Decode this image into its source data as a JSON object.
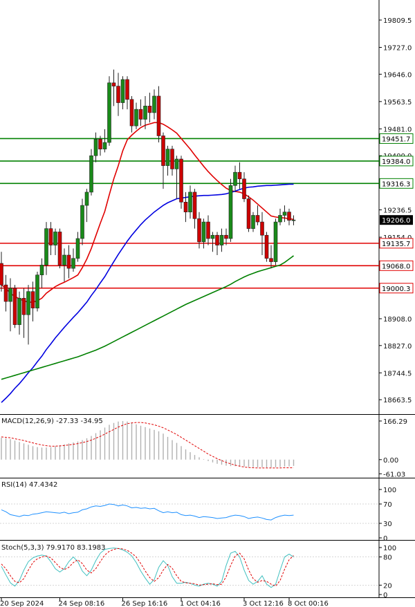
{
  "chart_data": [
    {
      "type": "candlestick",
      "panel": "price",
      "y_ticks": [
        19809.5,
        19727.0,
        19646.0,
        19563.5,
        19481.0,
        19400.0,
        19236.5,
        19154.0,
        18908.0,
        18827.0,
        18744.5,
        18663.5
      ],
      "ylim": [
        18620,
        19870
      ],
      "current_price": 19206.0,
      "x_tick_labels": [
        "20 Sep 2024",
        "24 Sep 08:16",
        "26 Sep 16:16",
        "1 Oct 04:16",
        "3 Oct 12:16",
        "8 Oct 00:16"
      ],
      "horizontal_levels": [
        {
          "value": 19451.7,
          "label": "19451.7",
          "color": "#008000"
        },
        {
          "value": 19384.0,
          "label": "19384.0",
          "color": "#008000"
        },
        {
          "value": 19316.3,
          "label": "19316.3",
          "color": "#008000"
        },
        {
          "value": 19135.7,
          "label": "19135.7",
          "color": "#e00000"
        },
        {
          "value": 19068.0,
          "label": "19068.0",
          "color": "#e00000"
        },
        {
          "value": 19000.3,
          "label": "19000.3",
          "color": "#e00000"
        }
      ],
      "candles": [
        {
          "o": 19075,
          "h": 19110,
          "l": 18990,
          "c": 19010
        },
        {
          "o": 19010,
          "h": 19040,
          "l": 18930,
          "c": 18960
        },
        {
          "o": 18960,
          "h": 19030,
          "l": 18870,
          "c": 19000
        },
        {
          "o": 19000,
          "h": 19010,
          "l": 18880,
          "c": 18890
        },
        {
          "o": 18890,
          "h": 18990,
          "l": 18860,
          "c": 18970
        },
        {
          "o": 18970,
          "h": 19000,
          "l": 18850,
          "c": 18920
        },
        {
          "o": 18920,
          "h": 19010,
          "l": 18830,
          "c": 18990
        },
        {
          "o": 18990,
          "h": 19020,
          "l": 18900,
          "c": 18940
        },
        {
          "o": 18940,
          "h": 19050,
          "l": 18930,
          "c": 19040
        },
        {
          "o": 19040,
          "h": 19090,
          "l": 19000,
          "c": 19070
        },
        {
          "o": 19070,
          "h": 19200,
          "l": 19040,
          "c": 19180
        },
        {
          "o": 19180,
          "h": 19200,
          "l": 19100,
          "c": 19130
        },
        {
          "o": 19130,
          "h": 19180,
          "l": 19100,
          "c": 19170
        },
        {
          "o": 19170,
          "h": 19180,
          "l": 19060,
          "c": 19070
        },
        {
          "o": 19070,
          "h": 19120,
          "l": 19020,
          "c": 19100
        },
        {
          "o": 19100,
          "h": 19130,
          "l": 19030,
          "c": 19060
        },
        {
          "o": 19060,
          "h": 19120,
          "l": 19050,
          "c": 19090
        },
        {
          "o": 19090,
          "h": 19170,
          "l": 19080,
          "c": 19150
        },
        {
          "o": 19150,
          "h": 19270,
          "l": 19130,
          "c": 19250
        },
        {
          "o": 19250,
          "h": 19300,
          "l": 19200,
          "c": 19290
        },
        {
          "o": 19290,
          "h": 19420,
          "l": 19280,
          "c": 19400
        },
        {
          "o": 19400,
          "h": 19470,
          "l": 19380,
          "c": 19450
        },
        {
          "o": 19450,
          "h": 19460,
          "l": 19400,
          "c": 19420
        },
        {
          "o": 19420,
          "h": 19480,
          "l": 19410,
          "c": 19440
        },
        {
          "o": 19440,
          "h": 19640,
          "l": 19430,
          "c": 19620
        },
        {
          "o": 19620,
          "h": 19660,
          "l": 19550,
          "c": 19610
        },
        {
          "o": 19610,
          "h": 19650,
          "l": 19520,
          "c": 19560
        },
        {
          "o": 19560,
          "h": 19640,
          "l": 19540,
          "c": 19630
        },
        {
          "o": 19630,
          "h": 19640,
          "l": 19540,
          "c": 19570
        },
        {
          "o": 19570,
          "h": 19580,
          "l": 19470,
          "c": 19490
        },
        {
          "o": 19490,
          "h": 19560,
          "l": 19480,
          "c": 19540
        },
        {
          "o": 19540,
          "h": 19570,
          "l": 19490,
          "c": 19510
        },
        {
          "o": 19510,
          "h": 19580,
          "l": 19480,
          "c": 19550
        },
        {
          "o": 19550,
          "h": 19590,
          "l": 19500,
          "c": 19530
        },
        {
          "o": 19530,
          "h": 19600,
          "l": 19510,
          "c": 19580
        },
        {
          "o": 19580,
          "h": 19610,
          "l": 19440,
          "c": 19460
        },
        {
          "o": 19460,
          "h": 19470,
          "l": 19300,
          "c": 19370
        },
        {
          "o": 19370,
          "h": 19430,
          "l": 19340,
          "c": 19420
        },
        {
          "o": 19420,
          "h": 19430,
          "l": 19340,
          "c": 19360
        },
        {
          "o": 19360,
          "h": 19400,
          "l": 19270,
          "c": 19390
        },
        {
          "o": 19390,
          "h": 19400,
          "l": 19240,
          "c": 19260
        },
        {
          "o": 19260,
          "h": 19290,
          "l": 19200,
          "c": 19230
        },
        {
          "o": 19230,
          "h": 19310,
          "l": 19210,
          "c": 19290
        },
        {
          "o": 19290,
          "h": 19300,
          "l": 19180,
          "c": 19210
        },
        {
          "o": 19210,
          "h": 19230,
          "l": 19120,
          "c": 19140
        },
        {
          "o": 19140,
          "h": 19210,
          "l": 19120,
          "c": 19200
        },
        {
          "o": 19200,
          "h": 19220,
          "l": 19130,
          "c": 19150
        },
        {
          "o": 19150,
          "h": 19170,
          "l": 19110,
          "c": 19160
        },
        {
          "o": 19160,
          "h": 19170,
          "l": 19100,
          "c": 19130
        },
        {
          "o": 19130,
          "h": 19180,
          "l": 19110,
          "c": 19160
        },
        {
          "o": 19160,
          "h": 19180,
          "l": 19130,
          "c": 19150
        },
        {
          "o": 19150,
          "h": 19330,
          "l": 19140,
          "c": 19310
        },
        {
          "o": 19310,
          "h": 19370,
          "l": 19290,
          "c": 19350
        },
        {
          "o": 19350,
          "h": 19380,
          "l": 19300,
          "c": 19330
        },
        {
          "o": 19330,
          "h": 19350,
          "l": 19260,
          "c": 19270
        },
        {
          "o": 19270,
          "h": 19280,
          "l": 19170,
          "c": 19180
        },
        {
          "o": 19180,
          "h": 19230,
          "l": 19170,
          "c": 19220
        },
        {
          "o": 19220,
          "h": 19250,
          "l": 19190,
          "c": 19200
        },
        {
          "o": 19200,
          "h": 19230,
          "l": 19100,
          "c": 19160
        },
        {
          "o": 19160,
          "h": 19170,
          "l": 19080,
          "c": 19090
        },
        {
          "o": 19090,
          "h": 19130,
          "l": 19060,
          "c": 19080
        },
        {
          "o": 19080,
          "h": 19210,
          "l": 19070,
          "c": 19200
        },
        {
          "o": 19200,
          "h": 19240,
          "l": 19190,
          "c": 19220
        },
        {
          "o": 19220,
          "h": 19250,
          "l": 19200,
          "c": 19230
        },
        {
          "o": 19230,
          "h": 19240,
          "l": 19190,
          "c": 19205
        },
        {
          "o": 19205,
          "h": 19220,
          "l": 19190,
          "c": 19206
        }
      ],
      "moving_averages": [
        {
          "color": "#e00000",
          "values": [
            19010,
            19000,
            18985,
            18975,
            18968,
            18962,
            18958,
            18958,
            18962,
            18970,
            18985,
            18995,
            19005,
            19012,
            19018,
            19025,
            19032,
            19040,
            19062,
            19088,
            19120,
            19158,
            19196,
            19232,
            19282,
            19330,
            19370,
            19415,
            19448,
            19462,
            19474,
            19485,
            19492,
            19496,
            19500,
            19500,
            19495,
            19487,
            19478,
            19468,
            19452,
            19436,
            19420,
            19402,
            19385,
            19368,
            19352,
            19338,
            19325,
            19313,
            19302,
            19295,
            19292,
            19290,
            19285,
            19276,
            19266,
            19254,
            19242,
            19230,
            19218,
            19215,
            19213,
            19212,
            19210,
            19208
          ]
        },
        {
          "color": "#0000e0",
          "values": [
            18655,
            18668,
            18682,
            18698,
            18712,
            18728,
            18745,
            18760,
            18778,
            18795,
            18815,
            18832,
            18850,
            18866,
            18882,
            18897,
            18912,
            18926,
            18942,
            18958,
            18978,
            18996,
            19016,
            19035,
            19058,
            19080,
            19102,
            19122,
            19142,
            19160,
            19176,
            19192,
            19206,
            19218,
            19230,
            19240,
            19250,
            19258,
            19264,
            19270,
            19272,
            19274,
            19276,
            19278,
            19279,
            19280,
            19280,
            19281,
            19282,
            19283,
            19285,
            19289,
            19293,
            19298,
            19302,
            19305,
            19306,
            19308,
            19309,
            19310,
            19310,
            19311,
            19312,
            19313,
            19314,
            19314
          ]
        },
        {
          "color": "#008000",
          "values": [
            18725,
            18729,
            18733,
            18737,
            18741,
            18745,
            18749,
            18753,
            18757,
            18761,
            18765,
            18769,
            18773,
            18777,
            18781,
            18785,
            18789,
            18793,
            18798,
            18803,
            18808,
            18813,
            18819,
            18825,
            18832,
            18839,
            18846,
            18853,
            18860,
            18867,
            18874,
            18881,
            18888,
            18895,
            18902,
            18909,
            18916,
            18923,
            18930,
            18937,
            18944,
            18951,
            18957,
            18963,
            18969,
            18975,
            18981,
            18987,
            18993,
            18999,
            19005,
            19012,
            19020,
            19027,
            19034,
            19040,
            19045,
            19050,
            19054,
            19058,
            19062,
            19066,
            19070,
            19078,
            19088,
            19098
          ]
        }
      ]
    },
    {
      "type": "bar",
      "panel": "macd",
      "title": "MACD(12,26,9) -27.33 -34.95",
      "y_ticks": [
        166.29,
        0.0,
        -61.03
      ],
      "ylim": [
        -75,
        190
      ],
      "histogram": [
        95,
        92,
        88,
        82,
        76,
        70,
        64,
        58,
        54,
        52,
        52,
        54,
        58,
        62,
        66,
        70,
        74,
        78,
        84,
        92,
        102,
        114,
        126,
        138,
        150,
        158,
        164,
        166,
        164,
        160,
        152,
        146,
        140,
        134,
        128,
        122,
        112,
        98,
        84,
        72,
        58,
        44,
        32,
        20,
        10,
        2,
        -6,
        -12,
        -18,
        -22,
        -26,
        -28,
        -28,
        -30,
        -30,
        -32,
        -32,
        -33,
        -33,
        -34,
        -34,
        -33,
        -32,
        -30,
        -29,
        -27
      ],
      "signal": [
        98,
        96,
        94,
        90,
        86,
        82,
        77,
        72,
        67,
        63,
        60,
        58,
        58,
        59,
        61,
        63,
        66,
        69,
        73,
        78,
        84,
        92,
        100,
        110,
        120,
        130,
        140,
        148,
        155,
        158,
        160,
        160,
        158,
        154,
        150,
        144,
        137,
        128,
        118,
        108,
        96,
        84,
        72,
        60,
        48,
        36,
        24,
        14,
        4,
        -4,
        -12,
        -18,
        -24,
        -28,
        -32,
        -34,
        -35,
        -36,
        -36,
        -36,
        -36,
        -36,
        -36,
        -35,
        -35,
        -35
      ]
    },
    {
      "type": "line",
      "panel": "rsi",
      "title": "RSI(14) 47.4342",
      "y_ticks": [
        100,
        70,
        30,
        0
      ],
      "ylim": [
        0,
        100
      ],
      "values": [
        58,
        54,
        48,
        46,
        44,
        47,
        46,
        49,
        50,
        52,
        54,
        53,
        52,
        51,
        53,
        50,
        52,
        53,
        58,
        60,
        64,
        66,
        65,
        67,
        70,
        69,
        66,
        68,
        66,
        62,
        63,
        61,
        62,
        60,
        61,
        56,
        52,
        54,
        52,
        53,
        48,
        46,
        47,
        45,
        42,
        44,
        43,
        42,
        40,
        41,
        42,
        45,
        47,
        46,
        44,
        40,
        42,
        43,
        41,
        38,
        37,
        42,
        45,
        47,
        46,
        47
      ]
    },
    {
      "type": "line",
      "panel": "stochastic",
      "title": "Stoch(5,3,3) 79.9170 83.1983",
      "y_ticks": [
        100,
        80,
        20,
        0
      ],
      "ylim": [
        0,
        100
      ],
      "series": [
        {
          "color": "#40c0c0",
          "values": [
            60,
            42,
            25,
            18,
            30,
            52,
            70,
            78,
            82,
            84,
            82,
            70,
            55,
            48,
            55,
            70,
            80,
            70,
            50,
            40,
            52,
            72,
            88,
            96,
            98,
            99,
            98,
            95,
            90,
            82,
            68,
            50,
            35,
            22,
            32,
            58,
            72,
            62,
            38,
            24,
            24,
            26,
            24,
            20,
            18,
            22,
            24,
            22,
            18,
            28,
            62,
            88,
            92,
            80,
            52,
            30,
            22,
            28,
            40,
            22,
            15,
            22,
            52,
            80,
            86,
            80
          ]
        },
        {
          "color": "#e00000",
          "values": [
            65,
            55,
            40,
            28,
            25,
            34,
            52,
            68,
            76,
            80,
            82,
            78,
            68,
            58,
            53,
            58,
            68,
            74,
            66,
            52,
            46,
            55,
            70,
            84,
            92,
            96,
            98,
            97,
            94,
            88,
            80,
            66,
            50,
            36,
            28,
            36,
            52,
            64,
            56,
            40,
            28,
            25,
            24,
            23,
            20,
            21,
            22,
            23,
            21,
            22,
            38,
            62,
            82,
            88,
            76,
            52,
            34,
            26,
            30,
            28,
            22,
            18,
            30,
            54,
            74,
            83
          ]
        }
      ]
    }
  ]
}
